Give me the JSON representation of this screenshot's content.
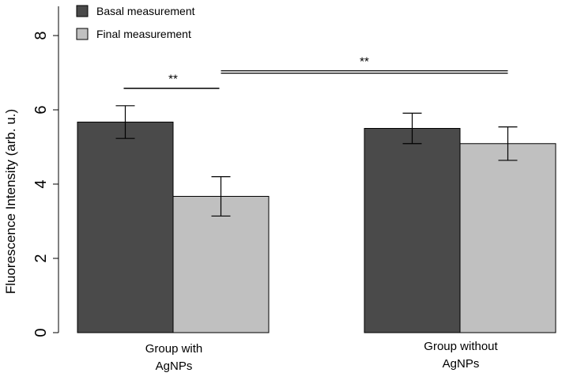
{
  "chart_data": {
    "type": "bar",
    "title": "",
    "xlabel": "",
    "ylabel": "Fluorescence Intensity   (arb. u.)",
    "ylim": [
      0,
      8.8
    ],
    "yticks": [
      0,
      2,
      4,
      6,
      8
    ],
    "ytick_labels": [
      "0",
      "2",
      "4",
      "6",
      "8"
    ],
    "grid": false,
    "legend_position": "top-left",
    "categories": [
      {
        "line1": "Group with",
        "line2": "AgNPs"
      },
      {
        "line1": "Group without",
        "line2": "AgNPs"
      }
    ],
    "series": [
      {
        "name": "Basal measurement",
        "color": "#4a4a4a",
        "values": [
          5.67,
          5.5
        ],
        "errors": [
          0.44,
          0.41
        ]
      },
      {
        "name": "Final measurement",
        "color": "#c0c0c0",
        "values": [
          3.67,
          5.09
        ],
        "errors": [
          0.53,
          0.45
        ]
      }
    ],
    "significance": [
      {
        "label": "**",
        "from": "Group with AgNPs|Basal measurement",
        "to": "Group with AgNPs|Final measurement",
        "y": 6.58
      },
      {
        "label": "**",
        "from": "Group with AgNPs|Final measurement",
        "to": "Group without AgNPs|Final measurement",
        "y": 7.05
      }
    ]
  }
}
